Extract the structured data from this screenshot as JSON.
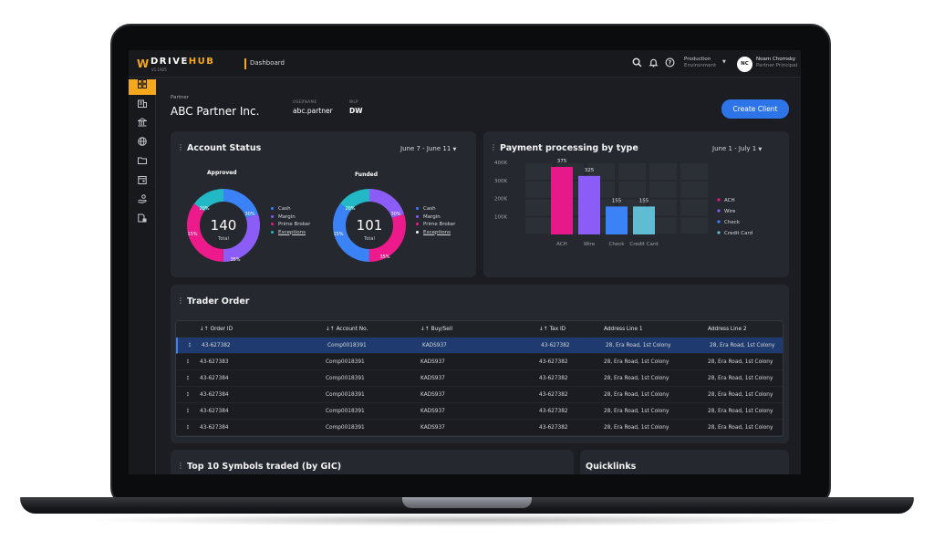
{
  "topbar": {
    "logo_mark": "W",
    "logo_drive": "DRIVE",
    "logo_hub": "HUB",
    "version": "V1.1925",
    "breadcrumb": "Dashboard",
    "env_title": "Production",
    "env_sub": "Environment",
    "avatar_initials": "NC",
    "user_name": "Noam Chomsky",
    "user_role": "Partner Principal"
  },
  "header": {
    "partner_label": "Partner",
    "partner_name": "ABC Partner Inc.",
    "username_label": "USERNAME",
    "username": "abc.partner",
    "wlp_label": "WLP",
    "wlp": "DW",
    "create_button": "Create Client"
  },
  "account_status": {
    "title": "Account Status",
    "range": "June 7 - June 11",
    "approved": {
      "title": "Approved",
      "total": "140",
      "total_label": "Total",
      "segments": [
        {
          "label": "Cash",
          "pct": 20,
          "color": "#3b82f6"
        },
        {
          "label": "Margin",
          "pct": 30,
          "color": "#8b5cf6"
        },
        {
          "label": "Prime Broker",
          "pct": 35,
          "color": "#ec1a8a"
        },
        {
          "label": "Exceptions",
          "pct": 15,
          "color": "#22b8c6"
        }
      ],
      "pct_labels": [
        "20%",
        "30%",
        "35%",
        "15%"
      ]
    },
    "funded": {
      "title": "Funded",
      "total": "101",
      "total_label": "Total",
      "segments": [
        {
          "label": "Cash",
          "pct": 20,
          "color": "#8b5cf6"
        },
        {
          "label": "Margin",
          "pct": 30,
          "color": "#ec1a8a"
        },
        {
          "label": "Prime Broker",
          "pct": 35,
          "color": "#3b82f6"
        },
        {
          "label": "Exceptions",
          "pct": 15,
          "color": "#22b8c6"
        }
      ],
      "pct_labels": [
        "20%",
        "30%",
        "35%",
        "15%"
      ]
    },
    "legend": [
      {
        "label": "Cash",
        "color": "#3b82f6"
      },
      {
        "label": "Margin",
        "color": "#8b5cf6"
      },
      {
        "label": "Prime Broker",
        "color": "#ec1a8a"
      },
      {
        "label": "Exceptions",
        "color": "#22b8c6"
      }
    ]
  },
  "payments": {
    "title": "Payment processing by type",
    "range": "June 1 - July 1"
  },
  "chart_data": {
    "type": "bar",
    "title": "Payment processing by type",
    "categories": [
      "ACH",
      "Wire",
      "Check",
      "Credit Card"
    ],
    "values": [
      375,
      325,
      155,
      155
    ],
    "value_labels": [
      "375",
      "325",
      "155",
      "155"
    ],
    "colors": [
      "#e5198a",
      "#8b5cf6",
      "#3b82f6",
      "#5fbcd3"
    ],
    "ylim": [
      0,
      400
    ],
    "y_ticks": [
      100,
      200,
      300,
      400
    ],
    "y_tick_labels": [
      "100K",
      "200K",
      "300K",
      "400K"
    ],
    "legend": [
      {
        "label": "ACH",
        "color": "#e5198a"
      },
      {
        "label": "Wire",
        "color": "#8b5cf6"
      },
      {
        "label": "Check",
        "color": "#3b82f6"
      },
      {
        "label": "Credit Card",
        "color": "#5fbcd3"
      }
    ],
    "legend_position": "right"
  },
  "trader": {
    "title": "Trader Order",
    "columns": [
      "Order ID",
      "Account No.",
      "Buy/Sell",
      "Tax ID",
      "Address Line 1",
      "Address Line 2"
    ],
    "rows": [
      [
        "43-627382",
        "Comp0018391",
        "KADS937",
        "43-627382",
        "28, Era Road, 1st Colony",
        "28, Era Road, 1st Colony"
      ],
      [
        "43-627383",
        "Comp0018391",
        "KADS937",
        "43-627382",
        "28, Era Road, 1st Colony",
        "28, Era Road, 1st Colony"
      ],
      [
        "43-627384",
        "Comp0018391",
        "KADS937",
        "43-627382",
        "28, Era Road, 1st Colony",
        "28, Era Road, 1st Colony"
      ],
      [
        "43-627384",
        "Comp0018391",
        "KADS937",
        "43-627382",
        "28, Era Road, 1st Colony",
        "28, Era Road, 1st Colony"
      ],
      [
        "43-627384",
        "Comp0018391",
        "KADS937",
        "43-627382",
        "28, Era Road, 1st Colony",
        "28, Era Road, 1st Colony"
      ],
      [
        "43-627384",
        "Comp0018391",
        "KADS937",
        "43-627382",
        "28, Era Road, 1st Colony",
        "28, Era Road, 1st Colony"
      ]
    ]
  },
  "bottom": {
    "top_symbols_title": "Top 10 Symbols traded (by GIC)",
    "quicklinks_title": "Quicklinks"
  },
  "icons": {
    "sidebar": [
      "dashboard-icon",
      "building-icon",
      "bank-icon",
      "globe-icon",
      "folder-icon",
      "calendar-icon",
      "hand-money-icon",
      "document-icon"
    ],
    "topbar": [
      "search-icon",
      "bell-icon",
      "help-icon"
    ]
  }
}
